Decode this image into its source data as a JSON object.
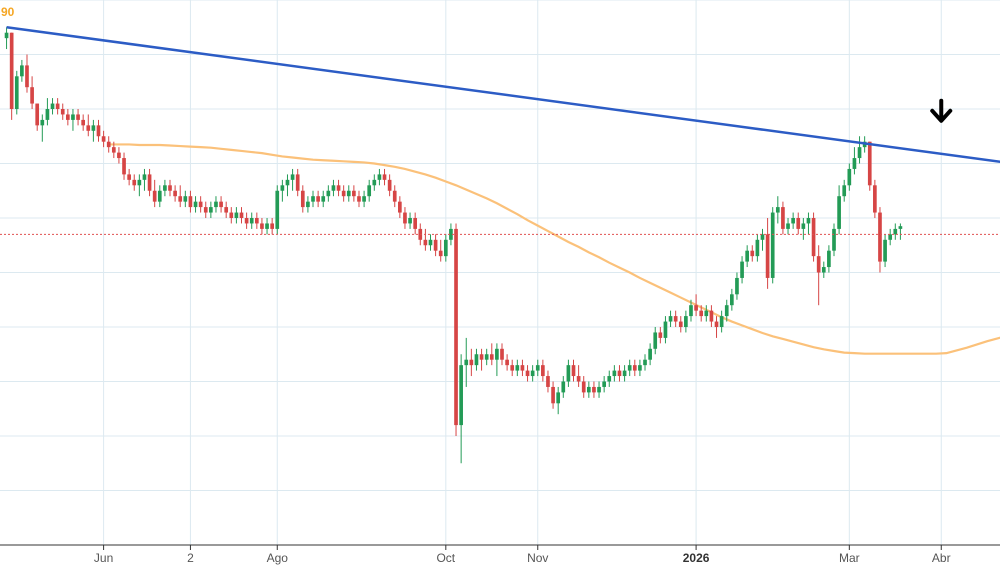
{
  "chart_data": {
    "type": "candlestick",
    "x_ticks": [
      {
        "label": "Jun",
        "bar": 19,
        "bold": false
      },
      {
        "label": "2",
        "bar": 36,
        "bold": false
      },
      {
        "label": "Ago",
        "bar": 53,
        "bold": false
      },
      {
        "label": "Oct",
        "bar": 86,
        "bold": false
      },
      {
        "label": "Nov",
        "bar": 104,
        "bold": false
      },
      {
        "label": "2026",
        "bar": 135,
        "bold": true
      },
      {
        "label": "Mar",
        "bar": 165,
        "bold": false
      },
      {
        "label": "Abr",
        "bar": 183,
        "bold": false
      }
    ],
    "bar_count": 195,
    "ylim": [
      0,
      100
    ],
    "price_label": "90",
    "current_price": 57,
    "candles": [
      {
        "o": 93,
        "h": 95,
        "l": 91,
        "c": 94
      },
      {
        "o": 94,
        "h": 94,
        "l": 78,
        "c": 80
      },
      {
        "o": 80,
        "h": 87,
        "l": 79,
        "c": 86
      },
      {
        "o": 86,
        "h": 89,
        "l": 85,
        "c": 88
      },
      {
        "o": 88,
        "h": 90,
        "l": 83,
        "c": 84
      },
      {
        "o": 84,
        "h": 86,
        "l": 80,
        "c": 81
      },
      {
        "o": 81,
        "h": 81,
        "l": 76,
        "c": 77
      },
      {
        "o": 77,
        "h": 79,
        "l": 74,
        "c": 78
      },
      {
        "o": 78,
        "h": 82,
        "l": 77,
        "c": 80
      },
      {
        "o": 80,
        "h": 82,
        "l": 79,
        "c": 81
      },
      {
        "o": 81,
        "h": 82,
        "l": 79,
        "c": 80
      },
      {
        "o": 80,
        "h": 81,
        "l": 78,
        "c": 79
      },
      {
        "o": 79,
        "h": 80,
        "l": 77,
        "c": 78
      },
      {
        "o": 78,
        "h": 80,
        "l": 76,
        "c": 79
      },
      {
        "o": 79,
        "h": 80,
        "l": 77,
        "c": 78
      },
      {
        "o": 78,
        "h": 79,
        "l": 76,
        "c": 77
      },
      {
        "o": 77,
        "h": 79,
        "l": 75,
        "c": 76
      },
      {
        "o": 76,
        "h": 78,
        "l": 74,
        "c": 77
      },
      {
        "o": 77,
        "h": 78,
        "l": 74,
        "c": 75
      },
      {
        "o": 75,
        "h": 76,
        "l": 73,
        "c": 74
      },
      {
        "o": 74,
        "h": 75,
        "l": 72,
        "c": 73
      },
      {
        "o": 73,
        "h": 74,
        "l": 71,
        "c": 72
      },
      {
        "o": 72,
        "h": 73,
        "l": 70,
        "c": 71
      },
      {
        "o": 71,
        "h": 72,
        "l": 67,
        "c": 68
      },
      {
        "o": 68,
        "h": 69,
        "l": 66,
        "c": 67
      },
      {
        "o": 67,
        "h": 68,
        "l": 65,
        "c": 66
      },
      {
        "o": 66,
        "h": 68,
        "l": 64,
        "c": 67
      },
      {
        "o": 67,
        "h": 69,
        "l": 65,
        "c": 68
      },
      {
        "o": 68,
        "h": 69,
        "l": 64,
        "c": 65
      },
      {
        "o": 65,
        "h": 67,
        "l": 62,
        "c": 63
      },
      {
        "o": 63,
        "h": 66,
        "l": 62,
        "c": 65
      },
      {
        "o": 65,
        "h": 67,
        "l": 64,
        "c": 66
      },
      {
        "o": 66,
        "h": 67,
        "l": 64,
        "c": 65
      },
      {
        "o": 65,
        "h": 66,
        "l": 63,
        "c": 64
      },
      {
        "o": 64,
        "h": 66,
        "l": 62,
        "c": 63
      },
      {
        "o": 63,
        "h": 65,
        "l": 62,
        "c": 64
      },
      {
        "o": 64,
        "h": 65,
        "l": 61,
        "c": 62
      },
      {
        "o": 62,
        "h": 64,
        "l": 61,
        "c": 63
      },
      {
        "o": 63,
        "h": 64,
        "l": 61,
        "c": 62
      },
      {
        "o": 62,
        "h": 63,
        "l": 60,
        "c": 61
      },
      {
        "o": 61,
        "h": 63,
        "l": 60,
        "c": 62
      },
      {
        "o": 62,
        "h": 64,
        "l": 61,
        "c": 63
      },
      {
        "o": 63,
        "h": 64,
        "l": 61,
        "c": 62
      },
      {
        "o": 62,
        "h": 63,
        "l": 60,
        "c": 61
      },
      {
        "o": 61,
        "h": 62,
        "l": 59,
        "c": 60
      },
      {
        "o": 60,
        "h": 62,
        "l": 59,
        "c": 61
      },
      {
        "o": 61,
        "h": 62,
        "l": 59,
        "c": 60
      },
      {
        "o": 60,
        "h": 61,
        "l": 58,
        "c": 59
      },
      {
        "o": 59,
        "h": 61,
        "l": 58,
        "c": 60
      },
      {
        "o": 60,
        "h": 61,
        "l": 58,
        "c": 59
      },
      {
        "o": 59,
        "h": 60,
        "l": 57,
        "c": 58
      },
      {
        "o": 58,
        "h": 60,
        "l": 57,
        "c": 59
      },
      {
        "o": 59,
        "h": 60,
        "l": 57,
        "c": 58
      },
      {
        "o": 58,
        "h": 66,
        "l": 57,
        "c": 65
      },
      {
        "o": 65,
        "h": 67,
        "l": 63,
        "c": 66
      },
      {
        "o": 66,
        "h": 68,
        "l": 64,
        "c": 67
      },
      {
        "o": 67,
        "h": 69,
        "l": 65,
        "c": 68
      },
      {
        "o": 68,
        "h": 69,
        "l": 64,
        "c": 65
      },
      {
        "o": 65,
        "h": 66,
        "l": 61,
        "c": 62
      },
      {
        "o": 62,
        "h": 64,
        "l": 61,
        "c": 63
      },
      {
        "o": 63,
        "h": 65,
        "l": 62,
        "c": 64
      },
      {
        "o": 64,
        "h": 65,
        "l": 62,
        "c": 63
      },
      {
        "o": 63,
        "h": 65,
        "l": 62,
        "c": 64
      },
      {
        "o": 64,
        "h": 66,
        "l": 63,
        "c": 65
      },
      {
        "o": 65,
        "h": 67,
        "l": 64,
        "c": 66
      },
      {
        "o": 66,
        "h": 67,
        "l": 64,
        "c": 65
      },
      {
        "o": 65,
        "h": 66,
        "l": 63,
        "c": 64
      },
      {
        "o": 64,
        "h": 66,
        "l": 63,
        "c": 65
      },
      {
        "o": 65,
        "h": 66,
        "l": 63,
        "c": 64
      },
      {
        "o": 64,
        "h": 65,
        "l": 62,
        "c": 63
      },
      {
        "o": 63,
        "h": 65,
        "l": 62,
        "c": 64
      },
      {
        "o": 64,
        "h": 67,
        "l": 63,
        "c": 66
      },
      {
        "o": 66,
        "h": 68,
        "l": 65,
        "c": 67
      },
      {
        "o": 67,
        "h": 69,
        "l": 66,
        "c": 68
      },
      {
        "o": 68,
        "h": 69,
        "l": 66,
        "c": 67
      },
      {
        "o": 67,
        "h": 68,
        "l": 64,
        "c": 65
      },
      {
        "o": 65,
        "h": 66,
        "l": 62,
        "c": 63
      },
      {
        "o": 63,
        "h": 64,
        "l": 60,
        "c": 61
      },
      {
        "o": 61,
        "h": 62,
        "l": 58,
        "c": 59
      },
      {
        "o": 59,
        "h": 61,
        "l": 58,
        "c": 60
      },
      {
        "o": 60,
        "h": 61,
        "l": 57,
        "c": 58
      },
      {
        "o": 58,
        "h": 59,
        "l": 55,
        "c": 56
      },
      {
        "o": 56,
        "h": 58,
        "l": 54,
        "c": 55
      },
      {
        "o": 55,
        "h": 57,
        "l": 54,
        "c": 56
      },
      {
        "o": 56,
        "h": 57,
        "l": 53,
        "c": 54
      },
      {
        "o": 54,
        "h": 56,
        "l": 52,
        "c": 53
      },
      {
        "o": 53,
        "h": 57,
        "l": 52,
        "c": 56
      },
      {
        "o": 56,
        "h": 59,
        "l": 55,
        "c": 58
      },
      {
        "o": 58,
        "h": 59,
        "l": 20,
        "c": 22
      },
      {
        "o": 22,
        "h": 35,
        "l": 15,
        "c": 33
      },
      {
        "o": 33,
        "h": 38,
        "l": 29,
        "c": 34
      },
      {
        "o": 34,
        "h": 36,
        "l": 31,
        "c": 33
      },
      {
        "o": 33,
        "h": 36,
        "l": 32,
        "c": 35
      },
      {
        "o": 35,
        "h": 36,
        "l": 32,
        "c": 34
      },
      {
        "o": 34,
        "h": 36,
        "l": 33,
        "c": 35
      },
      {
        "o": 35,
        "h": 37,
        "l": 33,
        "c": 34
      },
      {
        "o": 34,
        "h": 37,
        "l": 31,
        "c": 36
      },
      {
        "o": 36,
        "h": 37,
        "l": 33,
        "c": 34
      },
      {
        "o": 34,
        "h": 35,
        "l": 32,
        "c": 33
      },
      {
        "o": 33,
        "h": 34,
        "l": 31,
        "c": 32
      },
      {
        "o": 32,
        "h": 34,
        "l": 31,
        "c": 33
      },
      {
        "o": 33,
        "h": 34,
        "l": 31,
        "c": 32
      },
      {
        "o": 32,
        "h": 33,
        "l": 30,
        "c": 31
      },
      {
        "o": 31,
        "h": 33,
        "l": 30,
        "c": 32
      },
      {
        "o": 32,
        "h": 34,
        "l": 31,
        "c": 33
      },
      {
        "o": 33,
        "h": 34,
        "l": 30,
        "c": 31
      },
      {
        "o": 31,
        "h": 32,
        "l": 28,
        "c": 29
      },
      {
        "o": 29,
        "h": 30,
        "l": 25,
        "c": 26
      },
      {
        "o": 26,
        "h": 29,
        "l": 24,
        "c": 28
      },
      {
        "o": 28,
        "h": 31,
        "l": 27,
        "c": 30
      },
      {
        "o": 30,
        "h": 34,
        "l": 29,
        "c": 33
      },
      {
        "o": 33,
        "h": 34,
        "l": 30,
        "c": 31
      },
      {
        "o": 31,
        "h": 33,
        "l": 29,
        "c": 30
      },
      {
        "o": 30,
        "h": 31,
        "l": 27,
        "c": 28
      },
      {
        "o": 28,
        "h": 30,
        "l": 27,
        "c": 29
      },
      {
        "o": 29,
        "h": 30,
        "l": 27,
        "c": 28
      },
      {
        "o": 28,
        "h": 30,
        "l": 27,
        "c": 29
      },
      {
        "o": 29,
        "h": 31,
        "l": 28,
        "c": 30
      },
      {
        "o": 30,
        "h": 32,
        "l": 29,
        "c": 31
      },
      {
        "o": 31,
        "h": 33,
        "l": 30,
        "c": 32
      },
      {
        "o": 32,
        "h": 33,
        "l": 30,
        "c": 31
      },
      {
        "o": 31,
        "h": 33,
        "l": 30,
        "c": 32
      },
      {
        "o": 32,
        "h": 34,
        "l": 31,
        "c": 33
      },
      {
        "o": 33,
        "h": 34,
        "l": 31,
        "c": 32
      },
      {
        "o": 32,
        "h": 34,
        "l": 31,
        "c": 33
      },
      {
        "o": 33,
        "h": 35,
        "l": 32,
        "c": 34
      },
      {
        "o": 34,
        "h": 37,
        "l": 33,
        "c": 36
      },
      {
        "o": 36,
        "h": 40,
        "l": 35,
        "c": 39
      },
      {
        "o": 39,
        "h": 40,
        "l": 37,
        "c": 38
      },
      {
        "o": 38,
        "h": 42,
        "l": 37,
        "c": 41
      },
      {
        "o": 41,
        "h": 43,
        "l": 40,
        "c": 42
      },
      {
        "o": 42,
        "h": 43,
        "l": 40,
        "c": 41
      },
      {
        "o": 41,
        "h": 42,
        "l": 39,
        "c": 40
      },
      {
        "o": 40,
        "h": 43,
        "l": 39,
        "c": 42
      },
      {
        "o": 42,
        "h": 45,
        "l": 41,
        "c": 44
      },
      {
        "o": 44,
        "h": 46,
        "l": 42,
        "c": 43
      },
      {
        "o": 43,
        "h": 44,
        "l": 41,
        "c": 42
      },
      {
        "o": 42,
        "h": 44,
        "l": 41,
        "c": 43
      },
      {
        "o": 43,
        "h": 44,
        "l": 40,
        "c": 41
      },
      {
        "o": 41,
        "h": 42,
        "l": 38,
        "c": 40
      },
      {
        "o": 40,
        "h": 43,
        "l": 39,
        "c": 42
      },
      {
        "o": 42,
        "h": 45,
        "l": 41,
        "c": 44
      },
      {
        "o": 44,
        "h": 47,
        "l": 43,
        "c": 46
      },
      {
        "o": 46,
        "h": 50,
        "l": 45,
        "c": 49
      },
      {
        "o": 49,
        "h": 53,
        "l": 48,
        "c": 52
      },
      {
        "o": 52,
        "h": 55,
        "l": 51,
        "c": 54
      },
      {
        "o": 54,
        "h": 55,
        "l": 52,
        "c": 53
      },
      {
        "o": 53,
        "h": 57,
        "l": 52,
        "c": 56
      },
      {
        "o": 56,
        "h": 58,
        "l": 54,
        "c": 57
      },
      {
        "o": 57,
        "h": 60,
        "l": 47,
        "c": 49
      },
      {
        "o": 49,
        "h": 62,
        "l": 48,
        "c": 61
      },
      {
        "o": 61,
        "h": 64,
        "l": 59,
        "c": 62
      },
      {
        "o": 62,
        "h": 63,
        "l": 57,
        "c": 58
      },
      {
        "o": 58,
        "h": 60,
        "l": 57,
        "c": 59
      },
      {
        "o": 59,
        "h": 61,
        "l": 58,
        "c": 60
      },
      {
        "o": 60,
        "h": 61,
        "l": 57,
        "c": 58
      },
      {
        "o": 58,
        "h": 60,
        "l": 56,
        "c": 59
      },
      {
        "o": 59,
        "h": 61,
        "l": 57,
        "c": 60
      },
      {
        "o": 60,
        "h": 61,
        "l": 52,
        "c": 53
      },
      {
        "o": 53,
        "h": 55,
        "l": 44,
        "c": 50
      },
      {
        "o": 50,
        "h": 52,
        "l": 49,
        "c": 51
      },
      {
        "o": 51,
        "h": 55,
        "l": 50,
        "c": 54
      },
      {
        "o": 54,
        "h": 59,
        "l": 53,
        "c": 58
      },
      {
        "o": 58,
        "h": 66,
        "l": 57,
        "c": 64
      },
      {
        "o": 64,
        "h": 67,
        "l": 63,
        "c": 66
      },
      {
        "o": 66,
        "h": 70,
        "l": 65,
        "c": 69
      },
      {
        "o": 69,
        "h": 73,
        "l": 68,
        "c": 71
      },
      {
        "o": 71,
        "h": 75,
        "l": 70,
        "c": 73
      },
      {
        "o": 73,
        "h": 75,
        "l": 72,
        "c": 74
      },
      {
        "o": 74,
        "h": 74,
        "l": 65,
        "c": 66
      },
      {
        "o": 66,
        "h": 67,
        "l": 60,
        "c": 61
      },
      {
        "o": 61,
        "h": 62,
        "l": 50,
        "c": 52
      },
      {
        "o": 52,
        "h": 57,
        "l": 51,
        "c": 56
      },
      {
        "o": 56,
        "h": 58,
        "l": 55,
        "c": 57
      },
      {
        "o": 57,
        "h": 59,
        "l": 56,
        "c": 58
      },
      {
        "o": 58,
        "h": 59,
        "l": 56,
        "c": 58.5
      }
    ],
    "ma_series": {
      "name": "",
      "color": "#fbc17a",
      "start_bar": 20,
      "values": [
        73.5,
        73.5,
        73.5,
        73.4,
        73.4,
        73.4,
        73.3,
        73.2,
        73.1,
        73.0,
        72.9,
        72.7,
        72.5,
        72.3,
        72.1,
        71.9,
        71.6,
        71.3,
        71.1,
        70.9,
        70.7,
        70.6,
        70.5,
        70.4,
        70.3,
        70.2,
        70.0,
        69.7,
        69.4,
        69.0,
        68.5,
        68.0,
        67.4,
        66.7,
        66.0,
        65.2,
        64.4,
        63.6,
        62.7,
        61.7,
        60.7,
        59.6,
        58.6,
        57.6,
        56.6,
        55.6,
        54.7,
        53.7,
        52.8,
        51.8,
        50.9,
        50.0,
        49.0,
        48.1,
        47.2,
        46.3,
        45.4,
        44.5,
        43.6,
        42.7,
        41.8,
        41.0,
        40.3,
        39.6,
        38.9,
        38.3,
        37.8,
        37.3,
        36.8,
        36.3,
        35.9,
        35.6,
        35.3,
        35.2,
        35.1,
        35.1,
        35.1,
        35.1,
        35.1,
        35.1,
        35.1,
        35.1,
        35.2,
        35.7,
        36.2,
        36.8,
        37.4,
        37.9,
        38.4,
        38.9,
        39.3,
        39.9,
        40.5,
        41.2,
        42.1,
        43.3,
        44.6,
        45.8
      ]
    },
    "trendline": {
      "color": "#2c5cc5",
      "start": {
        "bar": 0,
        "y": 95
      },
      "end": {
        "bar": 197,
        "y": 70
      }
    },
    "marker": {
      "type": "down-arrow",
      "bar": 183,
      "y": 76,
      "color": "#000000"
    },
    "colors": {
      "up": "#239b56",
      "down": "#d64545",
      "grid": "#dce9f0",
      "price_label": "#f5a623",
      "current_line": "#e05050"
    },
    "grid": true
  }
}
